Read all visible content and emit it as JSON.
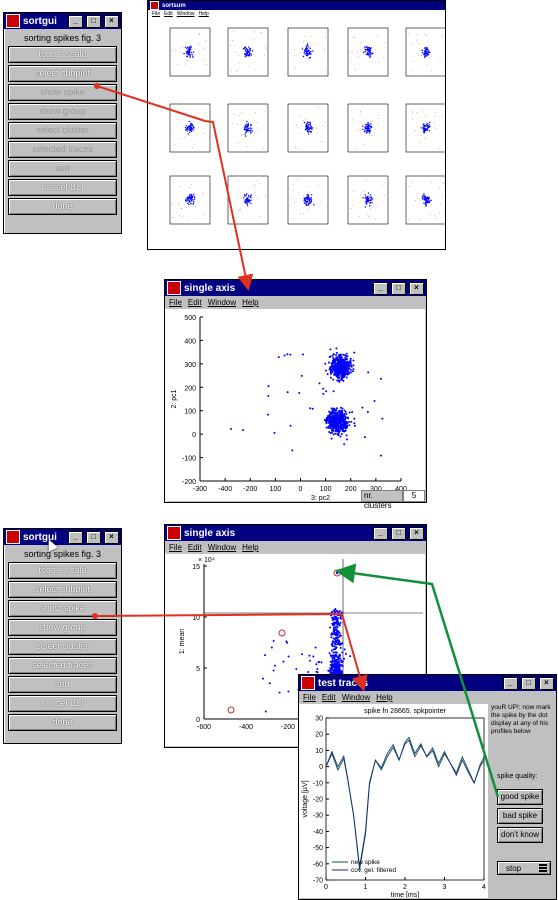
{
  "sortgui_top": {
    "title": "sortgui",
    "label": "sorting spikes fig. 3",
    "buttons": [
      {
        "label": "toggle scale",
        "enabled": true
      },
      {
        "label": "select subplot",
        "enabled": true
      },
      {
        "label": "show spike",
        "enabled": false
      },
      {
        "label": "show group",
        "enabled": false
      },
      {
        "label": "select cluster",
        "enabled": false
      },
      {
        "label": "selected traces",
        "enabled": false
      },
      {
        "label": "sort",
        "enabled": false
      },
      {
        "label": "cancel BLI",
        "enabled": true
      },
      {
        "label": "done",
        "enabled": true
      }
    ]
  },
  "sortgui_bottom": {
    "title": "sortgui",
    "label": "sorting spikes fig. 3",
    "buttons": [
      {
        "label": "toggle scale",
        "enabled": true
      },
      {
        "label": "select subplot",
        "enabled": true
      },
      {
        "label": "show spike",
        "enabled": true
      },
      {
        "label": "show group",
        "enabled": true
      },
      {
        "label": "select cluster",
        "enabled": true
      },
      {
        "label": "selected traces",
        "enabled": true
      },
      {
        "label": "sort",
        "enabled": true
      },
      {
        "label": "cancel BLI",
        "enabled": true
      },
      {
        "label": "done",
        "enabled": true
      }
    ]
  },
  "scatter_matrix": {
    "title": "sortsum",
    "menu": [
      "File",
      "Edit",
      "Window",
      "Help"
    ]
  },
  "single_axis_1": {
    "title": "single axis",
    "menu": [
      "File",
      "Edit",
      "Window",
      "Help"
    ],
    "ylabel": "2: pc1",
    "xlabel": "3: pc2",
    "yticks": [
      "500",
      "400",
      "300",
      "200",
      "100",
      "0",
      "-100",
      "-200"
    ],
    "xticks": [
      "-300",
      "-400",
      "-200",
      "100",
      "0",
      "100",
      "200",
      "300",
      "400"
    ],
    "status_label": "nr. clusters",
    "status_value": "5"
  },
  "single_axis_2": {
    "title": "single axis",
    "menu": [
      "File",
      "Edit",
      "Window",
      "Help"
    ],
    "exponent": "× 10⁴",
    "ylabel": "1: mean",
    "yticks": [
      "15",
      "10",
      "5",
      "0"
    ],
    "xticks": [
      "-600",
      "-400",
      "-200"
    ]
  },
  "test_traces": {
    "title": "test traces",
    "menu": [
      "File",
      "Edit",
      "Window",
      "Help"
    ],
    "plot_title": "spike fn 28665. spkpointer",
    "ylabel": "voltage [µV]",
    "xlabel": "time [ms]",
    "yticks": [
      "30",
      "20",
      "10",
      "0",
      "-10",
      "-20",
      "-30",
      "-40",
      "-50",
      "-60",
      "-70"
    ],
    "xticks": [
      "0",
      "1",
      "2",
      "3",
      "4"
    ],
    "legend": [
      "new spike",
      "cov. gel. filtered"
    ],
    "instructions": "youR UP!: now mark the spike by the dot display at any of his profiles below",
    "quality_label": "spike quality:",
    "buttons": [
      "good spike",
      "bad spike",
      "don't know"
    ],
    "stop_label": "stop"
  },
  "colors": {
    "titlebar": "#000080",
    "dots": "#0000ff",
    "red_arrow": "#e03020",
    "green_arrow": "#10903a"
  }
}
